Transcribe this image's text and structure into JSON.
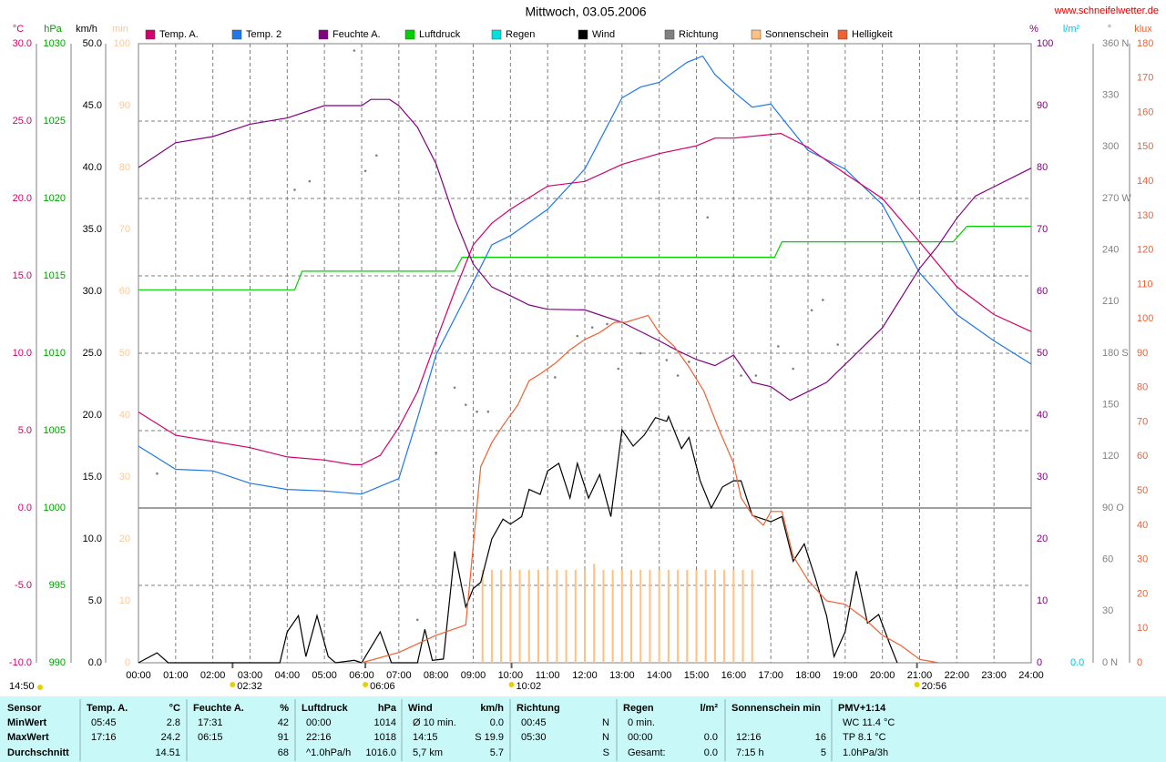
{
  "chart_data": {
    "type": "line",
    "title": "Mittwoch, 03.05.2006",
    "source": "www.schneifelwetter.de",
    "timestamp": "14:50",
    "xlim": [
      0,
      24
    ],
    "xticks": [
      {
        "value": 0,
        "label": "00:00"
      },
      {
        "value": 1,
        "label": "01:00"
      },
      {
        "value": 2,
        "label": "02:00"
      },
      {
        "value": 3,
        "label": "03:00"
      },
      {
        "value": 4,
        "label": "04:00"
      },
      {
        "value": 5,
        "label": "05:00"
      },
      {
        "value": 6,
        "label": "06:00"
      },
      {
        "value": 7,
        "label": "07:00"
      },
      {
        "value": 8,
        "label": "08:00"
      },
      {
        "value": 9,
        "label": "09:00"
      },
      {
        "value": 10,
        "label": "10:00"
      },
      {
        "value": 11,
        "label": "11:00"
      },
      {
        "value": 12,
        "label": "12:00"
      },
      {
        "value": 13,
        "label": "13:00"
      },
      {
        "value": 14,
        "label": "14:00"
      },
      {
        "value": 15,
        "label": "15:00"
      },
      {
        "value": 16,
        "label": "16:00"
      },
      {
        "value": 17,
        "label": "17:00"
      },
      {
        "value": 18,
        "label": "18:00"
      },
      {
        "value": 19,
        "label": "19:00"
      },
      {
        "value": 20,
        "label": "20:00"
      },
      {
        "value": 21,
        "label": "21:00"
      },
      {
        "value": 22,
        "label": "22:00"
      },
      {
        "value": 23,
        "label": "23:00"
      },
      {
        "value": 24,
        "label": "24:00"
      }
    ],
    "markers": [
      {
        "x": 2.53,
        "label": "02:32"
      },
      {
        "x": 6.1,
        "label": "06:06"
      },
      {
        "x": 10.03,
        "label": "10:02"
      },
      {
        "x": 20.93,
        "label": "20:56"
      }
    ],
    "axes": [
      {
        "unit": "°C",
        "color": "#d0006f",
        "ylim": [
          -10,
          30
        ],
        "grid": true,
        "yticks": [
          {
            "value": -10,
            "label": "-10.0"
          },
          {
            "value": -5,
            "label": "-5.0"
          },
          {
            "value": 0,
            "label": "0.0"
          },
          {
            "value": 5,
            "label": "5.0"
          },
          {
            "value": 10,
            "label": "10.0"
          },
          {
            "value": 15,
            "label": "15.0"
          },
          {
            "value": 20,
            "label": "20.0"
          },
          {
            "value": 25,
            "label": "25.0"
          },
          {
            "value": 30,
            "label": "30.0"
          }
        ]
      },
      {
        "unit": "hPa",
        "color": "#00a000",
        "ylim": [
          990,
          1030
        ],
        "yticks": [
          990,
          995,
          1000,
          1005,
          1010,
          1015,
          1020,
          1025,
          1030
        ]
      },
      {
        "unit": "km/h",
        "color": "#000000",
        "ylim": [
          0,
          50
        ],
        "yticks": [
          {
            "value": 0,
            "label": "0.0"
          },
          {
            "value": 5,
            "label": "5.0"
          },
          {
            "value": 10,
            "label": "10.0"
          },
          {
            "value": 15,
            "label": "15.0"
          },
          {
            "value": 20,
            "label": "20.0"
          },
          {
            "value": 25,
            "label": "25.0"
          },
          {
            "value": 30,
            "label": "30.0"
          },
          {
            "value": 35,
            "label": "35.0"
          },
          {
            "value": 40,
            "label": "40.0"
          },
          {
            "value": 45,
            "label": "45.0"
          },
          {
            "value": 50,
            "label": "50.0"
          }
        ]
      },
      {
        "unit": "min",
        "color": "#ffc890",
        "ylim": [
          0,
          100
        ],
        "yticks": [
          0,
          10,
          20,
          30,
          40,
          50,
          60,
          70,
          80,
          90,
          100
        ]
      },
      {
        "unit": "%",
        "color": "#800080",
        "ylim": [
          0,
          100
        ],
        "yticks": [
          0,
          10,
          20,
          30,
          40,
          50,
          60,
          70,
          80,
          90,
          100
        ]
      },
      {
        "unit": "l/m²",
        "color": "#00c8d8",
        "yticks": [
          {
            "value": 0,
            "label": "0.0"
          }
        ]
      },
      {
        "unit": "°",
        "color": "#808080",
        "ylim": [
          0,
          360
        ],
        "yticks": [
          {
            "value": 0,
            "label": "0 N"
          },
          30,
          60,
          {
            "value": 90,
            "label": "90 O"
          },
          120,
          150,
          {
            "value": 180,
            "label": "180 S"
          },
          210,
          240,
          {
            "value": 270,
            "label": "270 W"
          },
          300,
          330,
          {
            "value": 360,
            "label": "360 N"
          }
        ]
      },
      {
        "unit": "klux",
        "color": "#f06030",
        "ylim": [
          0,
          180
        ],
        "yticks": [
          0,
          10,
          20,
          30,
          40,
          50,
          60,
          70,
          80,
          90,
          100,
          110,
          120,
          130,
          140,
          150,
          160,
          170,
          180
        ]
      }
    ],
    "series": [
      {
        "name": "Temp. A.",
        "type": "line",
        "axis": 0,
        "color": "#d0006f",
        "x": [
          0,
          1,
          2,
          3,
          4,
          5,
          5.75,
          6,
          6.5,
          7,
          7.5,
          8,
          8.5,
          9,
          9.5,
          10,
          11,
          12,
          13,
          14,
          15,
          15.5,
          16,
          17.27,
          18,
          19,
          20,
          21,
          22,
          23,
          24
        ],
        "values": [
          6.2,
          4.7,
          4.3,
          3.9,
          3.3,
          3.1,
          2.8,
          2.8,
          3.4,
          5.2,
          7.5,
          10.8,
          14,
          17,
          18.4,
          19.3,
          20.8,
          21.1,
          22.2,
          22.9,
          23.4,
          23.9,
          23.9,
          24.2,
          23.3,
          21.6,
          20,
          17.2,
          14.3,
          12.5,
          11.4
        ]
      },
      {
        "name": "Temp. 2",
        "type": "line",
        "axis": 0,
        "color": "#1e78e6",
        "x": [
          0,
          1,
          2,
          3,
          4,
          5,
          6,
          7,
          7.5,
          8,
          9,
          9.5,
          10,
          11,
          12,
          13,
          13.5,
          14,
          14.75,
          15.17,
          15.5,
          16,
          16.5,
          17,
          17.5,
          18,
          19,
          20,
          21,
          22,
          23,
          24
        ],
        "values": [
          4,
          2.5,
          2.4,
          1.6,
          1.2,
          1.1,
          0.9,
          1.9,
          5.8,
          9.9,
          14.6,
          17,
          17.6,
          19.3,
          21.9,
          26.5,
          27.2,
          27.5,
          28.8,
          29.2,
          28,
          26.9,
          25.9,
          26.1,
          24.6,
          23.1,
          21.9,
          19.6,
          15.2,
          12.5,
          10.8,
          9.3
        ]
      },
      {
        "name": "Feuchte A.",
        "type": "line",
        "axis": 4,
        "color": "#800080",
        "x": [
          0,
          0.5,
          1,
          2,
          3,
          4,
          5,
          6,
          6.25,
          6.75,
          7,
          7.5,
          8,
          8.5,
          9,
          9.5,
          10,
          10.5,
          11,
          12,
          13,
          14,
          14.5,
          15,
          15.5,
          16,
          16.5,
          17,
          17.52,
          18,
          18.5,
          19,
          20,
          21,
          21.5,
          22,
          22.5,
          23,
          24
        ],
        "values": [
          80,
          82,
          84,
          85,
          87,
          88,
          90,
          90,
          91,
          91,
          90,
          86.5,
          80.6,
          71.8,
          64.4,
          60.7,
          59.3,
          57.8,
          57.1,
          57,
          55,
          52,
          50.4,
          49,
          48,
          49.7,
          45.3,
          44.6,
          42.4,
          43.8,
          45.3,
          48.2,
          54.1,
          63.7,
          67.4,
          71.8,
          75.4,
          76.9,
          79.9
        ]
      },
      {
        "name": "Luftdruck",
        "type": "line",
        "axis": 1,
        "color": "#00d000",
        "x": [
          0,
          4.2,
          4.4,
          8.5,
          8.7,
          17.1,
          17.3,
          21.9,
          22.27,
          24
        ],
        "values": [
          1014.1,
          1014.1,
          1015.3,
          1015.3,
          1016.2,
          1016.2,
          1017.2,
          1017.2,
          1018.2,
          1018.2
        ]
      },
      {
        "name": "Regen",
        "type": "line",
        "axis": 5,
        "color": "#00e0e0",
        "x": [],
        "values": []
      },
      {
        "name": "Wind",
        "type": "line",
        "axis": 2,
        "color": "#000000",
        "x": [
          0,
          0.5,
          0.8,
          3.8,
          4,
          4.3,
          4.5,
          4.8,
          5.1,
          5.3,
          5.8,
          6,
          6.3,
          6.5,
          6.8,
          7.5,
          7.7,
          7.9,
          8.2,
          8.5,
          8.8,
          9,
          9.2,
          9.5,
          9.8,
          10,
          10.3,
          10.5,
          10.8,
          11,
          11.3,
          11.6,
          11.8,
          12.1,
          12.4,
          12.7,
          13,
          13.3,
          13.6,
          13.9,
          14.2,
          14.25,
          14.6,
          14.8,
          15.1,
          15.4,
          15.7,
          16,
          16.2,
          16.5,
          17,
          17.3,
          17.6,
          17.9,
          18.2,
          18.5,
          18.7,
          19,
          19.3,
          19.6,
          19.9,
          20.2,
          20.4
        ],
        "values": [
          0,
          0.8,
          0,
          0,
          2.5,
          3.8,
          0.5,
          3.8,
          0.5,
          0,
          0.2,
          0,
          1.5,
          2.5,
          0,
          0,
          2.7,
          0.2,
          0.3,
          9,
          4.5,
          6,
          6.5,
          10,
          11.6,
          11.2,
          11.8,
          14,
          13.6,
          15.5,
          16.1,
          13.3,
          16.1,
          13.3,
          15.2,
          11.8,
          18.8,
          17.5,
          18.4,
          19.8,
          19.5,
          19.9,
          17.3,
          18.2,
          14.7,
          12.5,
          14.2,
          14.7,
          14.7,
          11.9,
          11.4,
          11.8,
          8.2,
          9.6,
          6.8,
          3.8,
          0.5,
          2.5,
          7.4,
          3.2,
          3.9,
          1.5,
          0
        ]
      },
      {
        "name": "Richtung",
        "type": "scatter",
        "axis": 6,
        "color": "#808080",
        "x": [
          0.5,
          4.2,
          4.6,
          5.8,
          6.1,
          6.4,
          7.5,
          8,
          8.5,
          8.8,
          9.1,
          9.4,
          11.2,
          11.8,
          12.2,
          12.6,
          12.9,
          13.5,
          14.2,
          14.5,
          14.8,
          15.3,
          16.2,
          16.6,
          17.2,
          17.6,
          18.1,
          18.4,
          18.8
        ],
        "values": [
          110,
          275,
          280,
          356,
          286,
          295,
          25,
          122,
          160,
          150,
          146,
          146,
          166,
          190,
          195,
          197,
          171,
          180,
          176,
          167,
          175,
          259,
          167,
          167,
          184,
          171,
          205,
          211,
          185
        ]
      },
      {
        "name": "Sonnenschein",
        "type": "bar",
        "axis": 3,
        "color": "#ffc080",
        "x": [
          9.25,
          9.5,
          9.75,
          10,
          10.25,
          10.5,
          10.75,
          11,
          11.25,
          11.5,
          11.75,
          12,
          12.25,
          12.5,
          12.75,
          13,
          13.25,
          13.5,
          13.75,
          14,
          14.25,
          14.5,
          14.75,
          15,
          15.25,
          15.5,
          15.75,
          16,
          16.25,
          16.5
        ],
        "values": [
          15,
          15,
          15,
          15,
          15,
          15,
          15,
          15,
          15,
          15,
          15,
          15,
          16,
          15,
          15,
          15,
          15,
          15,
          15,
          15,
          15,
          15,
          15,
          15,
          15,
          15,
          15,
          15,
          15,
          15
        ]
      },
      {
        "name": "Helligkeit",
        "type": "line",
        "axis": 7,
        "color": "#f06030",
        "x": [
          6,
          7,
          8,
          8.8,
          9.2,
          9.5,
          9.8,
          10.2,
          10.5,
          10.8,
          11.2,
          11.6,
          12,
          12.4,
          12.8,
          13.1,
          13.4,
          13.7,
          14,
          14.4,
          14.8,
          15.2,
          15.6,
          16,
          16.2,
          16.5,
          16.8,
          17,
          17.3,
          17.6,
          18,
          18.5,
          19,
          19.5,
          20,
          20.5,
          21,
          21.5
        ],
        "values": [
          0,
          3,
          8,
          11,
          57,
          64,
          69,
          75,
          82,
          84,
          87,
          91,
          94,
          96,
          99,
          99,
          100,
          101,
          96,
          92,
          86,
          79,
          68,
          58,
          48,
          43,
          40,
          44,
          44,
          31,
          24,
          18,
          17,
          13,
          8,
          5,
          1,
          0
        ]
      }
    ]
  },
  "table": {
    "corner": "Sensor",
    "row_labels": [
      "MinWert",
      "MaxWert",
      "Durchschnitt"
    ],
    "columns": [
      {
        "title": "Temp. A.",
        "unit": "°C",
        "cells": [
          [
            "05:45",
            "2.8"
          ],
          [
            "17:16",
            "24.2"
          ],
          [
            null,
            "14.51"
          ]
        ]
      },
      {
        "title": "Feuchte A.",
        "unit": "%",
        "cells": [
          [
            "17:31",
            "42"
          ],
          [
            "06:15",
            "91"
          ],
          [
            null,
            "68"
          ]
        ]
      },
      {
        "title": "Luftdruck",
        "unit": "hPa",
        "cells": [
          [
            "00:00",
            "1014"
          ],
          [
            "22:16",
            "1018"
          ],
          [
            "^1.0hPa/h",
            "1016.0"
          ]
        ]
      },
      {
        "title": "Wind",
        "unit": "km/h",
        "cells": [
          [
            "Ø 10 min.",
            "0.0"
          ],
          [
            "14:15",
            "S 19.9"
          ],
          [
            "5,7 km",
            "5.7"
          ]
        ]
      },
      {
        "title": "Richtung",
        "unit": null,
        "cells": [
          [
            "00:45",
            "N"
          ],
          [
            "05:30",
            "N"
          ],
          [
            null,
            "S"
          ]
        ]
      },
      {
        "title": "Regen",
        "unit": "l/m²",
        "cells": [
          [
            "0 min.",
            null
          ],
          [
            "00:00",
            "0.0"
          ],
          [
            "Gesamt:",
            "0.0"
          ]
        ]
      },
      {
        "title": "Sonnenschein min",
        "unit": null,
        "cells": [
          [
            null,
            null
          ],
          [
            "12:16",
            "16"
          ],
          [
            "7:15 h",
            "5"
          ]
        ]
      },
      {
        "title": "PMV+1:14",
        "unit": null,
        "cells": [
          [
            "WC 11.4 °C",
            null
          ],
          [
            "TP 8.1 °C",
            null
          ],
          [
            "1.0hPa/3h",
            null
          ]
        ]
      }
    ]
  }
}
